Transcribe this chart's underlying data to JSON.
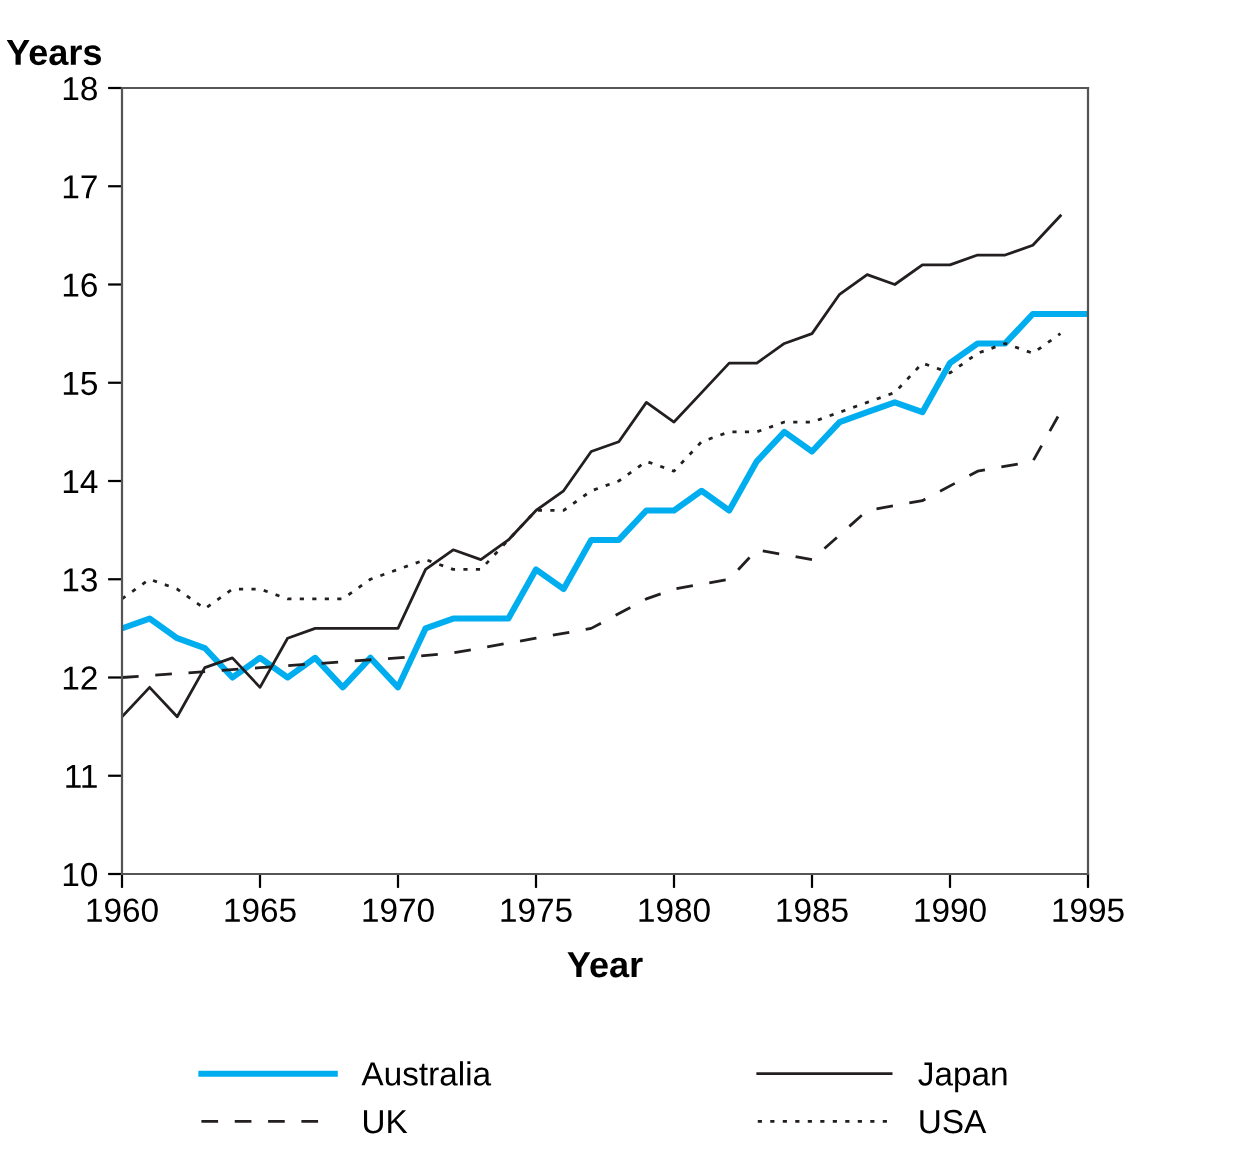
{
  "chart_data": {
    "type": "line",
    "xlabel": "Year",
    "ylabel": "Years",
    "xlim": [
      1960,
      1995
    ],
    "xticks": [
      1960,
      1965,
      1970,
      1975,
      1980,
      1985,
      1990,
      1995
    ],
    "ylim": [
      10,
      18
    ],
    "yticks": [
      10,
      11,
      12,
      13,
      14,
      15,
      16,
      17,
      18
    ],
    "grid": false,
    "legend": "bottom",
    "marker": "none",
    "series": [
      {
        "name": "Australia",
        "color": "#00aeef",
        "line_style": "solid",
        "x": [
          1960,
          1961,
          1962,
          1963,
          1964,
          1965,
          1966,
          1967,
          1968,
          1969,
          1970,
          1971,
          1972,
          1973,
          1974,
          1975,
          1976,
          1977,
          1978,
          1979,
          1980,
          1981,
          1982,
          1983,
          1984,
          1985,
          1986,
          1987,
          1988,
          1989,
          1990,
          1991,
          1992,
          1993,
          1994,
          1995
        ],
        "values": [
          12.5,
          12.6,
          12.4,
          12.3,
          12.0,
          12.2,
          12.0,
          12.2,
          11.9,
          12.2,
          11.9,
          12.5,
          12.6,
          12.6,
          12.6,
          13.1,
          12.9,
          13.4,
          13.4,
          13.7,
          13.7,
          13.9,
          13.7,
          14.2,
          14.5,
          14.3,
          14.6,
          14.7,
          14.8,
          14.7,
          15.2,
          15.4,
          15.4,
          15.7,
          15.7,
          15.7
        ]
      },
      {
        "name": "Japan",
        "color": "#231f20",
        "line_style": "solid",
        "x": [
          1960,
          1961,
          1962,
          1963,
          1964,
          1965,
          1966,
          1967,
          1968,
          1969,
          1970,
          1971,
          1972,
          1973,
          1974,
          1975,
          1976,
          1977,
          1978,
          1979,
          1980,
          1981,
          1982,
          1983,
          1984,
          1985,
          1986,
          1987,
          1988,
          1989,
          1990,
          1991,
          1992,
          1993,
          1994
        ],
        "values": [
          11.6,
          11.9,
          11.6,
          12.1,
          12.2,
          11.9,
          12.4,
          12.5,
          12.5,
          12.5,
          12.5,
          13.1,
          13.3,
          13.2,
          13.4,
          13.7,
          13.9,
          14.3,
          14.4,
          14.8,
          14.6,
          14.9,
          15.2,
          15.2,
          15.4,
          15.5,
          15.9,
          16.1,
          16.0,
          16.2,
          16.2,
          16.3,
          16.3,
          16.4,
          16.7
        ]
      },
      {
        "name": "UK",
        "color": "#231f20",
        "line_style": "dashed",
        "x": [
          1960,
          1965,
          1970,
          1972,
          1975,
          1977,
          1979,
          1980,
          1982,
          1983,
          1985,
          1987,
          1989,
          1991,
          1993,
          1994
        ],
        "values": [
          12.0,
          12.1,
          12.2,
          12.25,
          12.4,
          12.5,
          12.8,
          12.9,
          13.0,
          13.3,
          13.2,
          13.7,
          13.8,
          14.1,
          14.2,
          14.7
        ]
      },
      {
        "name": "USA",
        "color": "#231f20",
        "line_style": "dotted",
        "x": [
          1960,
          1961,
          1962,
          1963,
          1964,
          1965,
          1966,
          1967,
          1968,
          1969,
          1970,
          1971,
          1972,
          1973,
          1974,
          1975,
          1976,
          1977,
          1978,
          1979,
          1980,
          1981,
          1982,
          1983,
          1984,
          1985,
          1986,
          1987,
          1988,
          1989,
          1990,
          1991,
          1992,
          1993,
          1994
        ],
        "values": [
          12.8,
          13.0,
          12.9,
          12.7,
          12.9,
          12.9,
          12.8,
          12.8,
          12.8,
          13.0,
          13.1,
          13.2,
          13.1,
          13.1,
          13.4,
          13.7,
          13.7,
          13.9,
          14.0,
          14.2,
          14.1,
          14.4,
          14.5,
          14.5,
          14.6,
          14.6,
          14.7,
          14.8,
          14.9,
          15.2,
          15.1,
          15.3,
          15.4,
          15.3,
          15.5
        ]
      }
    ]
  }
}
